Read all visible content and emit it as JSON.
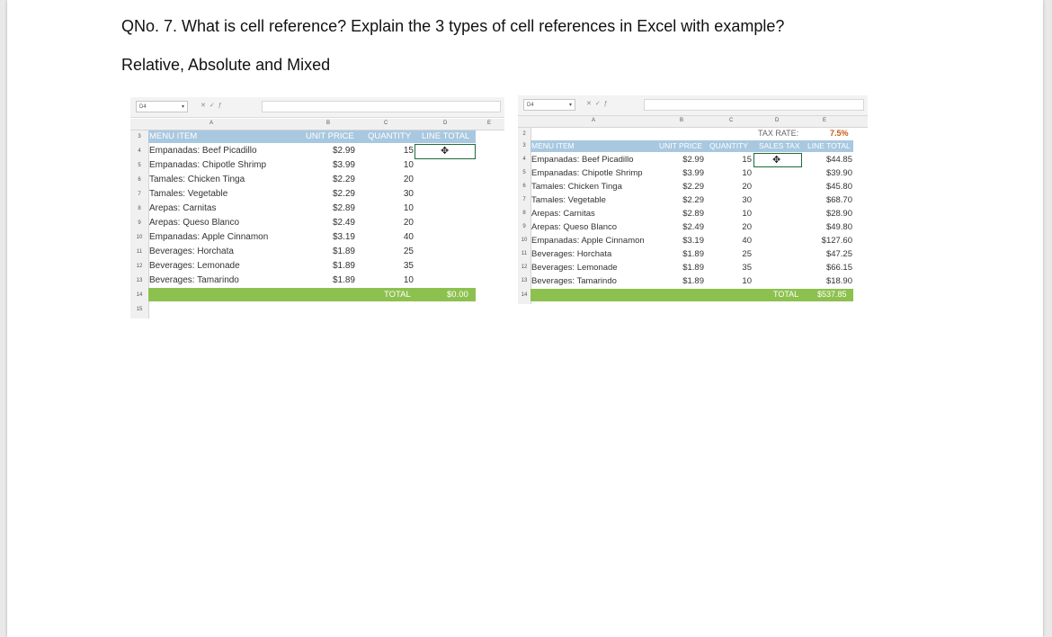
{
  "question": "QNo. 7. What is cell reference? Explain the 3 types of cell references in Excel with example?",
  "subtitle": "Relative, Absolute and Mixed",
  "sheet1": {
    "name_box": "D4",
    "col_letters": [
      "A",
      "B",
      "C",
      "D",
      "E"
    ],
    "row_numbers": [
      "3",
      "4",
      "5",
      "6",
      "7",
      "8",
      "9",
      "10",
      "11",
      "12",
      "13",
      "14",
      "15"
    ],
    "headers": {
      "item": "MENU ITEM",
      "price": "UNIT PRICE",
      "qty": "QUANTITY",
      "line": "LINE TOTAL"
    },
    "rows": [
      {
        "item": "Empanadas: Beef Picadillo",
        "price": "$2.99",
        "qty": "15"
      },
      {
        "item": "Empanadas: Chipotle Shrimp",
        "price": "$3.99",
        "qty": "10"
      },
      {
        "item": "Tamales: Chicken Tinga",
        "price": "$2.29",
        "qty": "20"
      },
      {
        "item": "Tamales: Vegetable",
        "price": "$2.29",
        "qty": "30"
      },
      {
        "item": "Arepas: Carnitas",
        "price": "$2.89",
        "qty": "10"
      },
      {
        "item": "Arepas: Queso Blanco",
        "price": "$2.49",
        "qty": "20"
      },
      {
        "item": "Empanadas: Apple Cinnamon",
        "price": "$3.19",
        "qty": "40"
      },
      {
        "item": "Beverages: Horchata",
        "price": "$1.89",
        "qty": "25"
      },
      {
        "item": "Beverages: Lemonade",
        "price": "$1.89",
        "qty": "35"
      },
      {
        "item": "Beverages: Tamarindo",
        "price": "$1.89",
        "qty": "10"
      }
    ],
    "total_label": "TOTAL",
    "total_value": "$0.00"
  },
  "sheet2": {
    "name_box": "D4",
    "col_letters": [
      "A",
      "B",
      "C",
      "D",
      "E"
    ],
    "row_numbers": [
      "2",
      "3",
      "4",
      "5",
      "6",
      "7",
      "8",
      "9",
      "10",
      "11",
      "12",
      "13",
      "14"
    ],
    "tax_label": "TAX RATE:",
    "tax_value": "7.5%",
    "headers": {
      "item": "MENU ITEM",
      "price": "UNIT PRICE",
      "qty": "QUANTITY",
      "tax": "SALES TAX",
      "line": "LINE TOTAL"
    },
    "rows": [
      {
        "item": "Empanadas: Beef Picadillo",
        "price": "$2.99",
        "qty": "15",
        "line": "$44.85"
      },
      {
        "item": "Empanadas: Chipotle Shrimp",
        "price": "$3.99",
        "qty": "10",
        "line": "$39.90"
      },
      {
        "item": "Tamales: Chicken Tinga",
        "price": "$2.29",
        "qty": "20",
        "line": "$45.80"
      },
      {
        "item": "Tamales: Vegetable",
        "price": "$2.29",
        "qty": "30",
        "line": "$68.70"
      },
      {
        "item": "Arepas: Carnitas",
        "price": "$2.89",
        "qty": "10",
        "line": "$28.90"
      },
      {
        "item": "Arepas: Queso Blanco",
        "price": "$2.49",
        "qty": "20",
        "line": "$49.80"
      },
      {
        "item": "Empanadas: Apple Cinnamon",
        "price": "$3.19",
        "qty": "40",
        "line": "$127.60"
      },
      {
        "item": "Beverages: Horchata",
        "price": "$1.89",
        "qty": "25",
        "line": "$47.25"
      },
      {
        "item": "Beverages: Lemonade",
        "price": "$1.89",
        "qty": "35",
        "line": "$66.15"
      },
      {
        "item": "Beverages: Tamarindo",
        "price": "$1.89",
        "qty": "10",
        "line": "$18.90"
      }
    ],
    "total_label": "TOTAL",
    "total_value": "$537.85"
  },
  "colors": {
    "header_band": "#a8c8e0",
    "total_band": "#8dc14f",
    "tax_value": "#c45a11",
    "selection": "#1e6b3a"
  },
  "icons": [
    "dropdown-arrow-icon",
    "cancel-x-icon",
    "check-icon",
    "fx-icon",
    "cell-cursor-icon"
  ]
}
